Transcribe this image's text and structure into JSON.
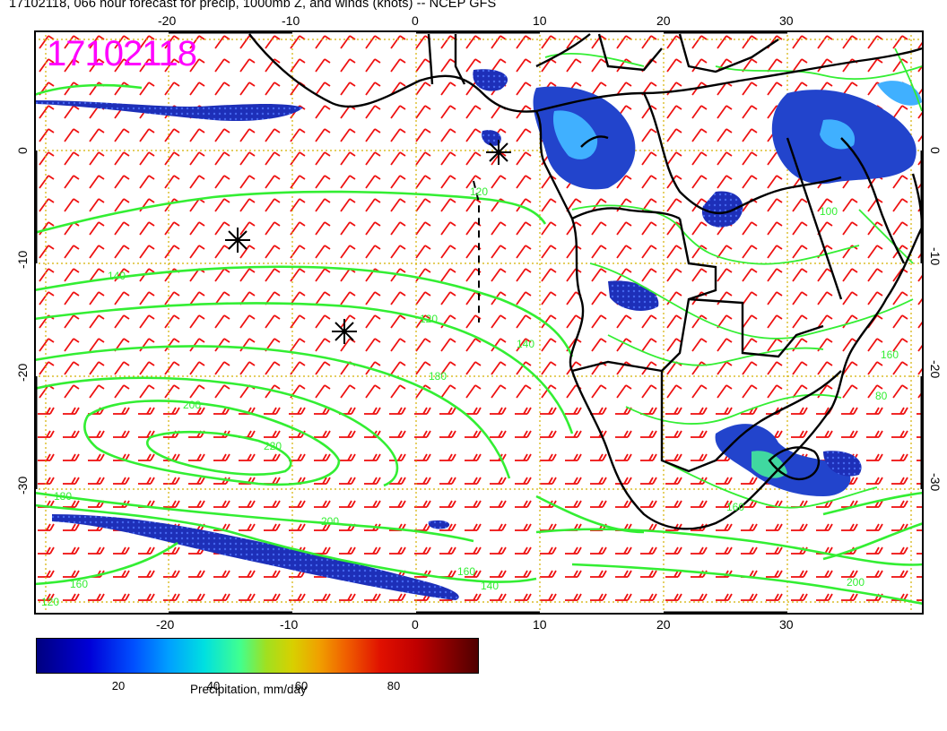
{
  "header": {
    "title": "17102118, 066 hour forecast for precip, 1000mb Z, and winds (knots) -- NCEP GFS",
    "stamp": "17102118"
  },
  "axes": {
    "lon_ticks": [
      "-20",
      "-10",
      "0",
      "10",
      "20",
      "30"
    ],
    "lat_ticks": [
      "0",
      "-10",
      "-20",
      "-30"
    ]
  },
  "contours": {
    "labels": [
      "120",
      "140",
      "160",
      "180",
      "200",
      "220",
      "100",
      "80"
    ]
  },
  "legend": {
    "ticks": [
      "20",
      "40",
      "60",
      "80"
    ],
    "label": "Precipitation, mm/day"
  },
  "colors": {
    "contour": "#33ee33",
    "barb": "#ee1111",
    "grid": "#d4b000",
    "stamp": "#ff00ff"
  }
}
